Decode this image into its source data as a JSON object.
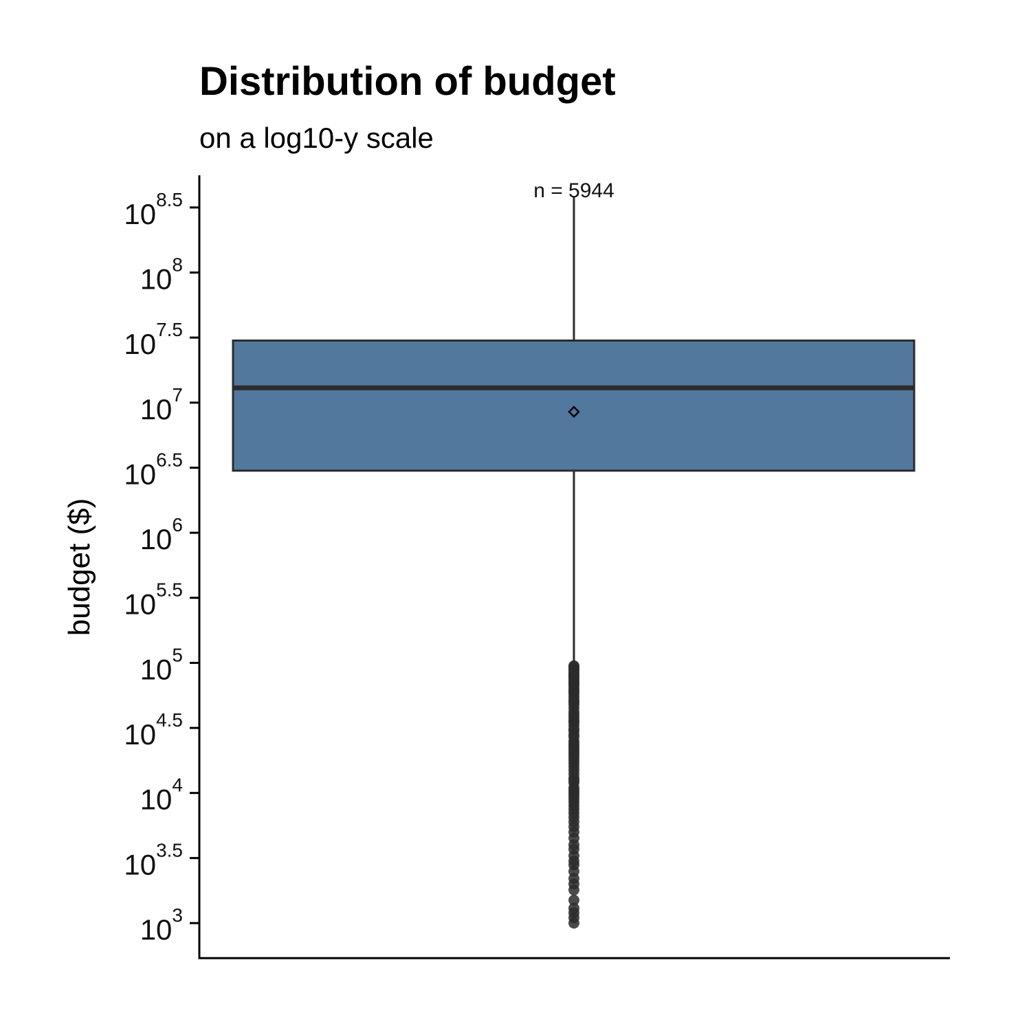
{
  "chart_data": {
    "type": "box",
    "title": "Distribution of budget",
    "subtitle": "on a log10-y scale",
    "xlabel": "",
    "ylabel": "budget ($)",
    "y_scale": "log10",
    "ylim": [
      1000,
      589000000
    ],
    "y_ticks": [
      {
        "base": "10",
        "exp": "3",
        "value": 1000
      },
      {
        "base": "10",
        "exp": "3.5",
        "value": 3162
      },
      {
        "base": "10",
        "exp": "4",
        "value": 10000
      },
      {
        "base": "10",
        "exp": "4.5",
        "value": 31623
      },
      {
        "base": "10",
        "exp": "5",
        "value": 100000
      },
      {
        "base": "10",
        "exp": "5.5",
        "value": 316228
      },
      {
        "base": "10",
        "exp": "6",
        "value": 1000000
      },
      {
        "base": "10",
        "exp": "6.5",
        "value": 3162278
      },
      {
        "base": "10",
        "exp": "7",
        "value": 10000000
      },
      {
        "base": "10",
        "exp": "7.5",
        "value": 31622777
      },
      {
        "base": "10",
        "exp": "8",
        "value": 100000000
      },
      {
        "base": "10",
        "exp": "8.5",
        "value": 316227766
      }
    ],
    "box": {
      "min": 100000,
      "q1": 3000000,
      "median": 13000000,
      "mean": 8500000,
      "q3": 30000000,
      "max": 380000000,
      "fill": "#53789e",
      "stroke": "#2b2b2b"
    },
    "n_label": "n = 5944",
    "outliers": [
      95000,
      93000,
      90000,
      88000,
      85000,
      82000,
      80000,
      78000,
      75000,
      72000,
      70000,
      68000,
      65000,
      62000,
      60000,
      58000,
      55000,
      52000,
      50000,
      48000,
      45000,
      42000,
      40000,
      38000,
      36000,
      35000,
      33000,
      31000,
      30000,
      28000,
      27000,
      25000,
      24000,
      23000,
      22000,
      21000,
      20000,
      19000,
      18000,
      17000,
      16000,
      15000,
      14000,
      13000,
      12500,
      12000,
      11000,
      10500,
      10000,
      9500,
      9000,
      8500,
      8000,
      7500,
      7000,
      6500,
      6000,
      5500,
      5000,
      4500,
      4000,
      3700,
      3300,
      3000,
      2800,
      2500,
      2200,
      2000,
      1800,
      1500,
      1300,
      1200,
      1100,
      1000
    ],
    "outlier_color": "#2b2b2b",
    "grid": false,
    "legend": "none"
  }
}
